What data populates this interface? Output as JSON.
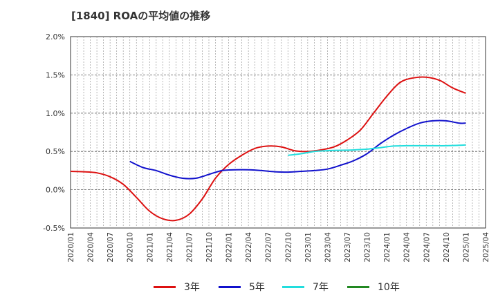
{
  "chart_data": {
    "type": "line",
    "title": "[1840]  ROAの平均値の推移",
    "xlabel": "",
    "ylabel": "",
    "ylim": [
      -0.5,
      2.0
    ],
    "y_ticks": [
      "2.0%",
      "1.5%",
      "1.0%",
      "0.5%",
      "0.0%",
      "-0.5%"
    ],
    "y_tick_values": [
      2.0,
      1.5,
      1.0,
      0.5,
      0.0,
      -0.5
    ],
    "x_ticks": [
      "2020/01",
      "2020/04",
      "2020/07",
      "2020/10",
      "2021/01",
      "2021/04",
      "2021/07",
      "2021/10",
      "2022/01",
      "2022/04",
      "2022/07",
      "2022/10",
      "2023/01",
      "2023/04",
      "2023/07",
      "2023/10",
      "2024/01",
      "2024/04",
      "2024/07",
      "2024/10",
      "2025/01",
      "2025/04"
    ],
    "x_range": [
      "2020/01",
      "2025/04"
    ],
    "grid": true,
    "legend_position": "bottom",
    "series": [
      {
        "name": "3年",
        "color": "#dd1111",
        "points": [
          [
            "2020/01",
            0.24
          ],
          [
            "2020/03",
            0.235
          ],
          [
            "2020/05",
            0.22
          ],
          [
            "2020/07",
            0.17
          ],
          [
            "2020/09",
            0.07
          ],
          [
            "2020/11",
            -0.1
          ],
          [
            "2021/01",
            -0.28
          ],
          [
            "2021/03",
            -0.38
          ],
          [
            "2021/05",
            -0.4
          ],
          [
            "2021/07",
            -0.32
          ],
          [
            "2021/09",
            -0.12
          ],
          [
            "2021/11",
            0.15
          ],
          [
            "2022/01",
            0.33
          ],
          [
            "2022/03",
            0.45
          ],
          [
            "2022/05",
            0.54
          ],
          [
            "2022/07",
            0.57
          ],
          [
            "2022/09",
            0.56
          ],
          [
            "2022/11",
            0.51
          ],
          [
            "2023/01",
            0.5
          ],
          [
            "2023/03",
            0.52
          ],
          [
            "2023/05",
            0.56
          ],
          [
            "2023/07",
            0.65
          ],
          [
            "2023/09",
            0.78
          ],
          [
            "2023/11",
            1.0
          ],
          [
            "2024/01",
            1.22
          ],
          [
            "2024/03",
            1.4
          ],
          [
            "2024/05",
            1.46
          ],
          [
            "2024/07",
            1.47
          ],
          [
            "2024/09",
            1.43
          ],
          [
            "2024/11",
            1.33
          ],
          [
            "2025/01",
            1.26
          ]
        ]
      },
      {
        "name": "5年",
        "color": "#1111cc",
        "points": [
          [
            "2020/10",
            0.37
          ],
          [
            "2020/12",
            0.29
          ],
          [
            "2021/02",
            0.25
          ],
          [
            "2021/04",
            0.19
          ],
          [
            "2021/06",
            0.15
          ],
          [
            "2021/08",
            0.15
          ],
          [
            "2021/10",
            0.2
          ],
          [
            "2021/12",
            0.25
          ],
          [
            "2022/02",
            0.26
          ],
          [
            "2022/04",
            0.26
          ],
          [
            "2022/06",
            0.25
          ],
          [
            "2022/08",
            0.235
          ],
          [
            "2022/10",
            0.23
          ],
          [
            "2022/12",
            0.24
          ],
          [
            "2023/02",
            0.25
          ],
          [
            "2023/04",
            0.27
          ],
          [
            "2023/06",
            0.32
          ],
          [
            "2023/08",
            0.38
          ],
          [
            "2023/10",
            0.47
          ],
          [
            "2023/12",
            0.6
          ],
          [
            "2024/02",
            0.71
          ],
          [
            "2024/04",
            0.8
          ],
          [
            "2024/06",
            0.87
          ],
          [
            "2024/08",
            0.9
          ],
          [
            "2024/10",
            0.9
          ],
          [
            "2024/12",
            0.87
          ],
          [
            "2025/01",
            0.87
          ]
        ]
      },
      {
        "name": "7年",
        "color": "#22dddd",
        "points": [
          [
            "2022/10",
            0.45
          ],
          [
            "2022/12",
            0.47
          ],
          [
            "2023/02",
            0.5
          ],
          [
            "2023/04",
            0.51
          ],
          [
            "2023/06",
            0.515
          ],
          [
            "2023/08",
            0.52
          ],
          [
            "2023/10",
            0.53
          ],
          [
            "2023/12",
            0.55
          ],
          [
            "2024/02",
            0.57
          ],
          [
            "2024/04",
            0.575
          ],
          [
            "2024/06",
            0.575
          ],
          [
            "2024/08",
            0.575
          ],
          [
            "2024/10",
            0.575
          ],
          [
            "2024/12",
            0.58
          ],
          [
            "2025/01",
            0.585
          ]
        ]
      },
      {
        "name": "10年",
        "color": "#228822",
        "points": []
      }
    ]
  }
}
